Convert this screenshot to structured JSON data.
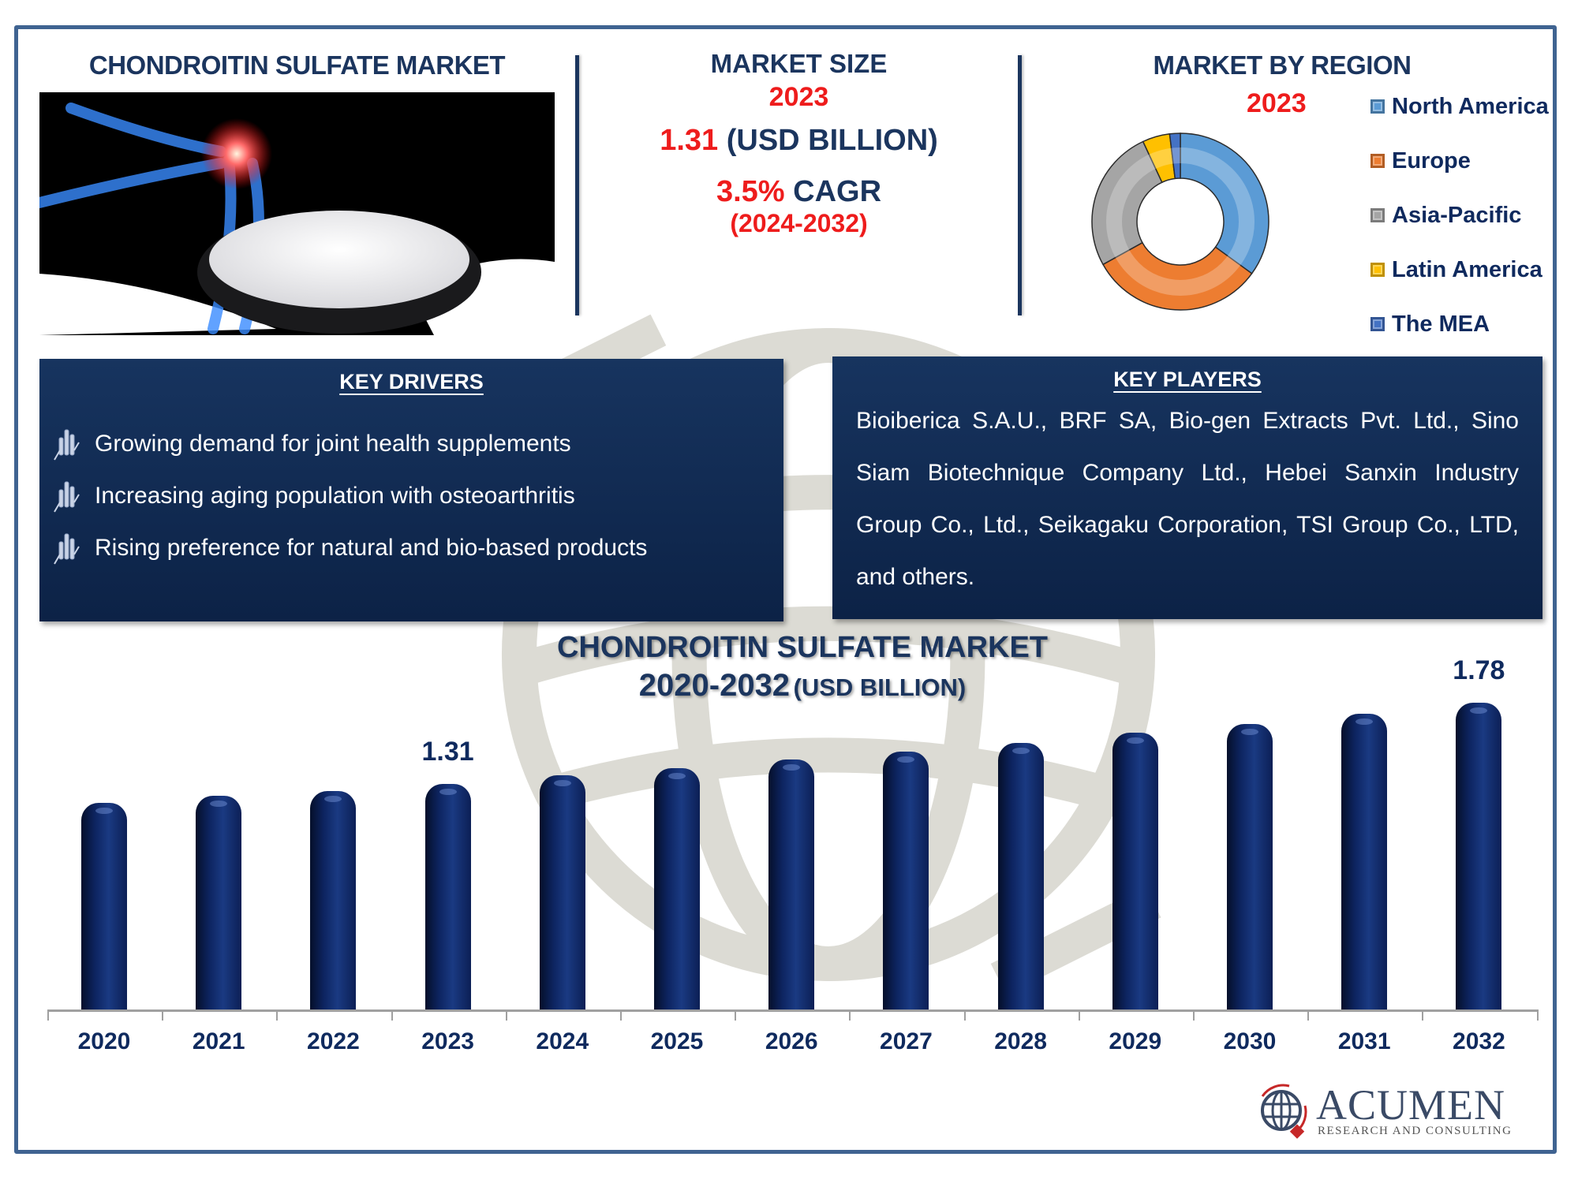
{
  "header": {
    "title": "CHONDROITIN SULFATE MARKET"
  },
  "market_size": {
    "title": "MARKET SIZE",
    "year": "2023",
    "value": "1.31",
    "unit": "(USD BILLION)",
    "cagr_value": "3.5%",
    "cagr_label": "CAGR",
    "cagr_period": "(2024-2032)"
  },
  "region": {
    "title": "MARKET BY REGION",
    "year": "2023",
    "legend": [
      {
        "label": "North America",
        "color": "#5b9bd5"
      },
      {
        "label": "Europe",
        "color": "#ed7d31"
      },
      {
        "label": "Asia-Pacific",
        "color": "#a5a5a5"
      },
      {
        "label": "Latin America",
        "color": "#ffc000"
      },
      {
        "label": "The MEA",
        "color": "#4472c4"
      }
    ]
  },
  "key_drivers": {
    "title": "KEY DRIVERS",
    "items": [
      "Growing demand for joint health supplements",
      "Increasing aging population with osteoarthritis",
      "Rising preference for natural and bio-based products"
    ]
  },
  "key_players": {
    "title": "KEY PLAYERS",
    "text": "Bioiberica S.A.U., BRF SA, Bio-gen Extracts Pvt. Ltd., Sino Siam Biotechnique Company Ltd., Hebei Sanxin Industry Group Co., Ltd., Seikagaku Corporation, TSI Group Co., LTD, and others."
  },
  "chart": {
    "title_line1": "CHONDROITIN SULFATE MARKET",
    "title_line2_years": "2020-2032",
    "title_line2_unit": "(USD BILLION)"
  },
  "logo": {
    "name": "ACUMEN",
    "tagline": "RESEARCH AND CONSULTING"
  },
  "chart_data": [
    {
      "type": "bar",
      "title": "CHONDROITIN SULFATE MARKET 2020-2032 (USD BILLION)",
      "xlabel": "",
      "ylabel": "USD Billion",
      "categories": [
        "2020",
        "2021",
        "2022",
        "2023",
        "2024",
        "2025",
        "2026",
        "2027",
        "2028",
        "2029",
        "2030",
        "2031",
        "2032"
      ],
      "values": [
        1.2,
        1.24,
        1.27,
        1.31,
        1.36,
        1.4,
        1.45,
        1.5,
        1.55,
        1.61,
        1.66,
        1.72,
        1.78
      ],
      "data_labels": {
        "2023": "1.31",
        "2032": "1.78"
      },
      "grid": false,
      "color": "#0d2460"
    },
    {
      "type": "pie",
      "subtype": "donut",
      "title": "MARKET BY REGION 2023",
      "categories": [
        "North America",
        "Europe",
        "Asia-Pacific",
        "Latin America",
        "The MEA"
      ],
      "values": [
        35,
        32,
        26,
        5,
        2
      ],
      "unit": "% share (estimated from segment angles)",
      "legend_position": "right"
    }
  ]
}
